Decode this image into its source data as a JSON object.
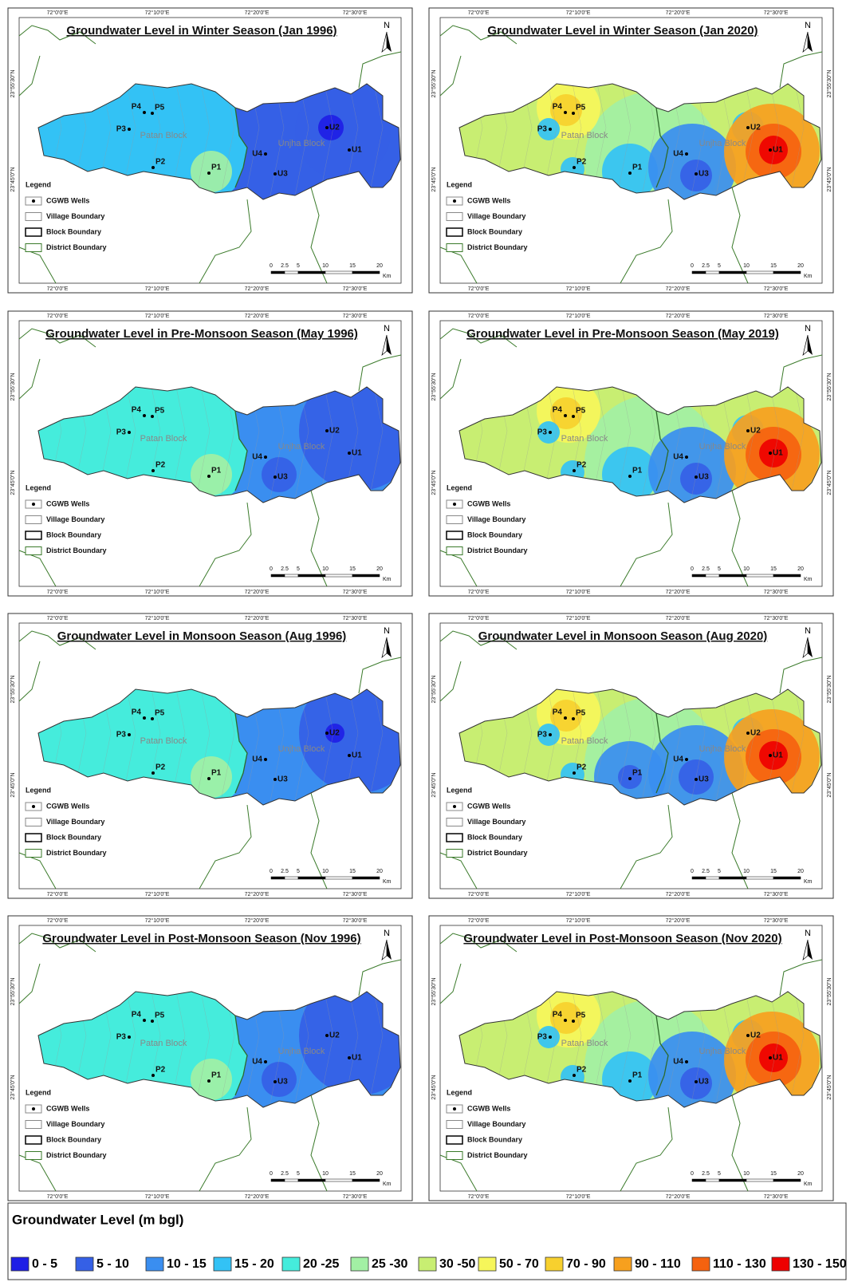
{
  "panels": [
    {
      "title": "Groundwater Level in Winter Season (Jan 1996)"
    },
    {
      "title": "Groundwater Level in Winter Season (Jan 2020)"
    },
    {
      "title": "Groundwater Level in Pre-Monsoon Season (May 1996)"
    },
    {
      "title": "Groundwater Level in Pre-Monsoon Season (May 2019)"
    },
    {
      "title": "Groundwater Level in Monsoon Season (Aug 1996)"
    },
    {
      "title": "Groundwater Level in Monsoon Season (Aug 2020)"
    },
    {
      "title": "Groundwater Level in Post-Monsoon Season (Nov 1996)"
    },
    {
      "title": "Groundwater Level in Post-Monsoon Season (Nov 2020)"
    }
  ],
  "map_labels": {
    "lon": [
      "72°0'0\"E",
      "72°10'0\"E",
      "72°20'0\"E",
      "72°30'0\"E"
    ],
    "lat": [
      "23°55'30\"N",
      "23°45'0\"N"
    ],
    "north": "N",
    "blocks": [
      "Patan Block",
      "Unjha Block"
    ],
    "wells": [
      "P1",
      "P2",
      "P3",
      "P4",
      "P5",
      "U1",
      "U2",
      "U3",
      "U4"
    ],
    "legend_title": "Legend",
    "legend_items": [
      "CGWB Wells",
      "Village Boundary",
      "Block Boundary",
      "District Boundary"
    ],
    "scale": [
      "0",
      "2.5",
      "5",
      "10",
      "15",
      "20"
    ],
    "scale_unit": "Km"
  },
  "level_legend": {
    "title": "Groundwater Level (m bgl)",
    "classes": [
      {
        "label": "0 - 5",
        "color": "#1e1ee6"
      },
      {
        "label": "5 - 10",
        "color": "#3560e6"
      },
      {
        "label": "10 - 15",
        "color": "#3a8ef0"
      },
      {
        "label": "15 - 20",
        "color": "#33c2f5"
      },
      {
        "label": "20 -25",
        "color": "#45ecdc"
      },
      {
        "label": "25 -30",
        "color": "#a2f0a4"
      },
      {
        "label": "30 -50",
        "color": "#c8ee72"
      },
      {
        "label": "50 - 70",
        "color": "#f6f65a"
      },
      {
        "label": "70 - 90",
        "color": "#f7d02e"
      },
      {
        "label": "90 - 110",
        "color": "#f7a01e"
      },
      {
        "label": "110 - 130",
        "color": "#f5620f"
      },
      {
        "label": "130 - 150",
        "color": "#ee0000"
      }
    ]
  }
}
